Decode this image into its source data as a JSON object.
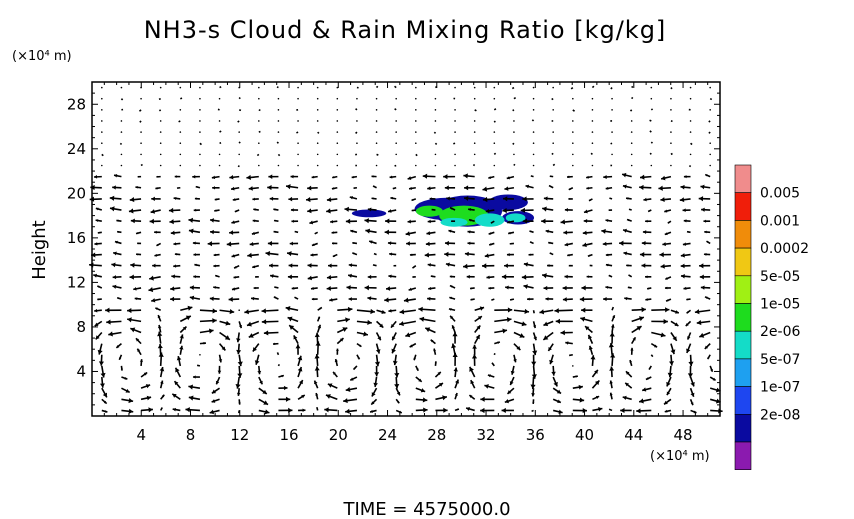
{
  "chart_data": {
    "type": "heatmap",
    "title": "NH3-s Cloud & Rain Mixing Ratio [kg/kg]",
    "ylabel": "Height",
    "y_unit": "(×10⁴ m)",
    "x_unit": "(×10⁴ m)",
    "xlim": [
      0,
      51
    ],
    "ylim": [
      0,
      30
    ],
    "x_ticks": [
      "4",
      "8",
      "12",
      "16",
      "20",
      "24",
      "28",
      "32",
      "36",
      "40",
      "44",
      "48"
    ],
    "y_ticks": [
      "4",
      "8",
      "12",
      "16",
      "20",
      "24",
      "28"
    ],
    "colorbar": {
      "labels": [
        "0.005",
        "0.001",
        "0.0002",
        "5e-05",
        "1e-05",
        "2e-06",
        "5e-07",
        "1e-07",
        "2e-08"
      ],
      "colors": [
        "#8b1aaf",
        "#0a0aa0",
        "#1e46f0",
        "#1ea0f0",
        "#14dcc8",
        "#1edc1e",
        "#a0f014",
        "#f0c814",
        "#f08c0a",
        "#f01e0a",
        "#f08c8c"
      ]
    },
    "cloud_regions": [
      {
        "x": 22.5,
        "y": 18.2,
        "rx": 1.4,
        "ry": 0.35,
        "level": 1
      },
      {
        "x": 28.8,
        "y": 18.6,
        "rx": 2.6,
        "ry": 1.0,
        "level": 1
      },
      {
        "x": 30.5,
        "y": 18.4,
        "rx": 2.8,
        "ry": 1.4,
        "level": 1
      },
      {
        "x": 33.8,
        "y": 19.2,
        "rx": 1.6,
        "ry": 0.7,
        "level": 1
      },
      {
        "x": 34.6,
        "y": 17.8,
        "rx": 1.3,
        "ry": 0.6,
        "level": 1
      },
      {
        "x": 27.4,
        "y": 18.4,
        "rx": 1.1,
        "ry": 0.5,
        "level": 5
      },
      {
        "x": 30.2,
        "y": 18.0,
        "rx": 2.0,
        "ry": 0.9,
        "level": 5
      },
      {
        "x": 32.3,
        "y": 17.6,
        "rx": 1.2,
        "ry": 0.6,
        "level": 4
      },
      {
        "x": 34.4,
        "y": 17.8,
        "rx": 0.8,
        "ry": 0.4,
        "level": 4
      },
      {
        "x": 29.4,
        "y": 17.4,
        "rx": 1.1,
        "ry": 0.4,
        "level": 4
      }
    ],
    "wind_field": "arrows"
  },
  "footer": {
    "time_label": "TIME  =  4575000.0"
  }
}
